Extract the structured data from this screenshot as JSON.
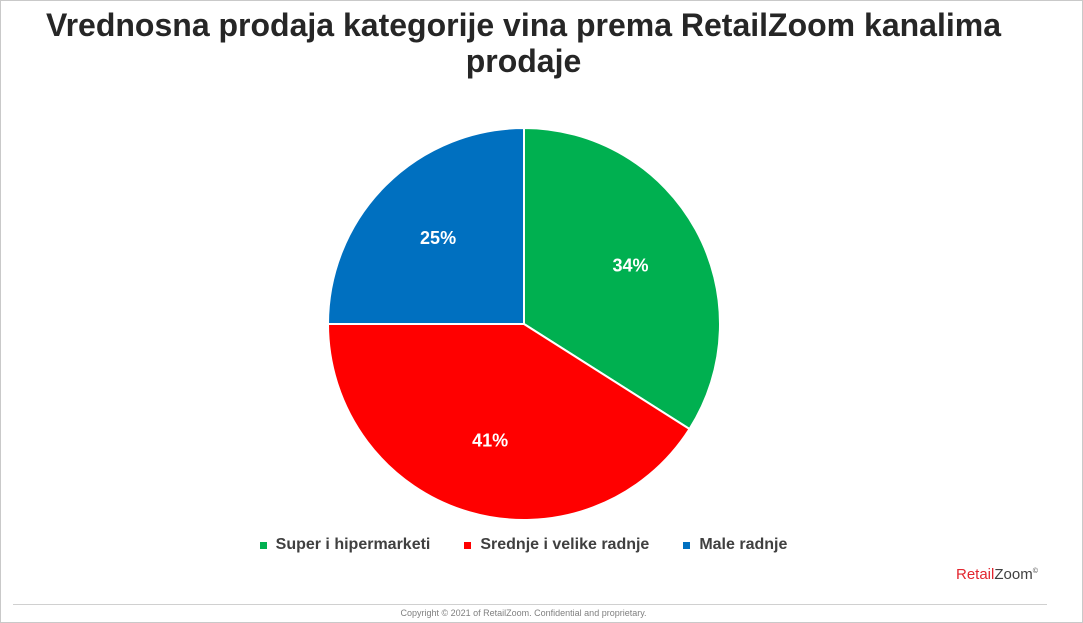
{
  "chart_data": {
    "type": "pie",
    "title": "Vrednosna prodaja kategorije vina prema RetailZoom kanalima prodaje",
    "categories": [
      "Super i hipermarketi",
      "Srednje i velike radnje",
      "Male radnje"
    ],
    "values": [
      34,
      41,
      25
    ],
    "data_labels": [
      "34%",
      "41%",
      "25%"
    ],
    "colors": [
      "#00b050",
      "#ff0000",
      "#0070c0"
    ],
    "legend_position": "bottom"
  },
  "brand": {
    "retail": "Retail",
    "zoom": "Zoom",
    "mark": "©"
  },
  "footer": {
    "copyright": "Copyright © 2021 of RetailZoom. Confidential and proprietary."
  }
}
